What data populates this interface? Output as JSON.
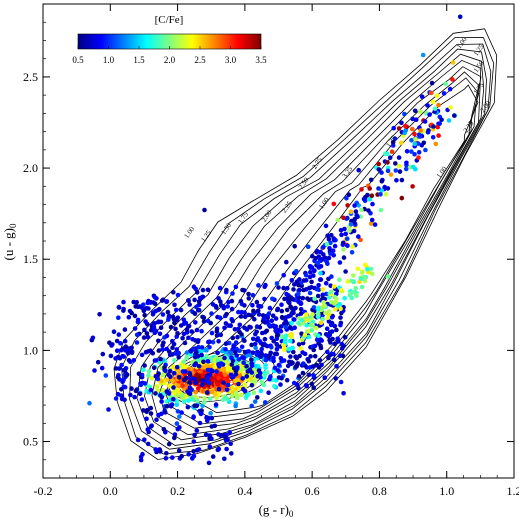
{
  "chart_data": {
    "type": "scatter",
    "xlabel_main": "(g - r)",
    "xlabel_sub": "0",
    "ylabel_main": "(u - g)",
    "ylabel_sub": "0",
    "xlim": [
      -0.2,
      1.2
    ],
    "ylim": [
      0.3,
      2.9
    ],
    "xticks": [
      -0.2,
      0.0,
      0.2,
      0.4,
      0.6,
      0.8,
      1.0,
      1.2
    ],
    "xtick_labels": [
      "-0.2",
      "0.0",
      "0.2",
      "0.4",
      "0.6",
      "0.8",
      "1.0",
      "1.2"
    ],
    "yticks": [
      0.5,
      1.0,
      1.5,
      2.0,
      2.5
    ],
    "ytick_labels": [
      "0.5",
      "1.0",
      "1.5",
      "2.0",
      "2.5"
    ],
    "colorbar": {
      "title": "[C/Fe]",
      "range": [
        0.5,
        3.5
      ],
      "ticks": [
        0.5,
        1.0,
        1.5,
        2.0,
        2.5,
        3.0,
        3.5
      ],
      "tick_labels": [
        "0.5",
        "1.0",
        "1.5",
        "2.0",
        "2.5",
        "3.0",
        "3.5"
      ],
      "colormap": [
        "#00007f",
        "#0000ff",
        "#0080ff",
        "#00ffff",
        "#80ff80",
        "#ffff00",
        "#ff8000",
        "#ff0000",
        "#7f0000"
      ]
    },
    "contour_levels": [
      1.0,
      1.25,
      1.5,
      1.75,
      2.0,
      2.25,
      2.5,
      2.75,
      3.0,
      3.25
    ],
    "contour_labels": [
      "1.00",
      "1.25",
      "1.50",
      "1.75",
      "2.00",
      "2.25",
      "1.00",
      "1.25",
      "1.50",
      "1.75",
      "2.00",
      "2.25",
      "2.50",
      "2.75",
      "3.25",
      "1.00",
      "1.00",
      "1.25"
    ],
    "contour_label_points": [
      [
        1.05,
        2.68
      ],
      [
        1.1,
        2.64
      ],
      [
        1.1,
        2.55
      ],
      [
        1.1,
        2.43
      ],
      [
        1.12,
        2.33
      ],
      [
        1.07,
        2.22
      ],
      [
        0.24,
        1.64
      ],
      [
        0.29,
        1.62
      ],
      [
        0.35,
        1.66
      ],
      [
        0.4,
        1.72
      ],
      [
        0.47,
        1.73
      ],
      [
        0.53,
        1.78
      ],
      [
        0.58,
        1.91
      ],
      [
        0.62,
        2.02
      ],
      [
        0.71,
        1.97
      ],
      [
        0.99,
        1.97
      ],
      [
        0.64,
        1.8
      ],
      [
        0.84,
        2.14
      ]
    ],
    "grid": false,
    "marker": "filled circle",
    "point_count": 1800
  }
}
